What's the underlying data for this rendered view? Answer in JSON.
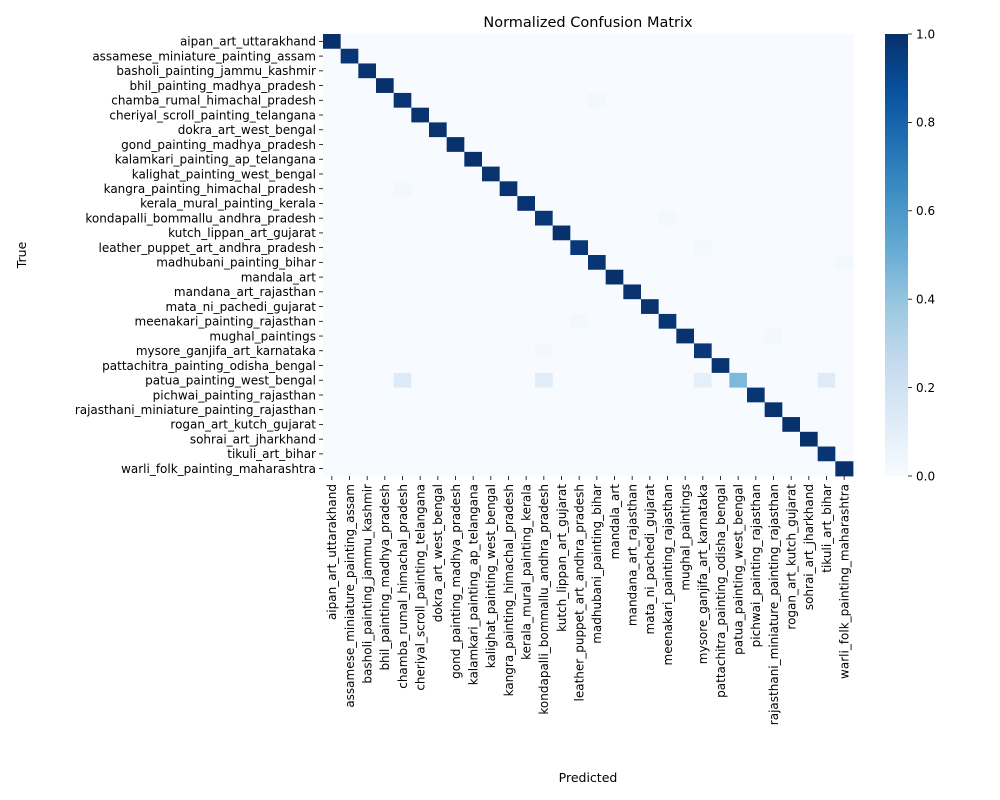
{
  "chart_data": {
    "type": "heatmap",
    "title": "Normalized Confusion Matrix",
    "xlabel": "Predicted",
    "ylabel": "True",
    "categories": [
      "aipan_art_uttarakhand",
      "assamese_miniature_painting_assam",
      "basholi_painting_jammu_kashmir",
      "bhil_painting_madhya_pradesh",
      "chamba_rumal_himachal_pradesh",
      "cheriyal_scroll_painting_telangana",
      "dokra_art_west_bengal",
      "gond_painting_madhya_pradesh",
      "kalamkari_painting_ap_telangana",
      "kalighat_painting_west_bengal",
      "kangra_painting_himachal_pradesh",
      "kerala_mural_painting_kerala",
      "kondapalli_bommallu_andhra_pradesh",
      "kutch_lippan_art_gujarat",
      "leather_puppet_art_andhra_pradesh",
      "madhubani_painting_bihar",
      "mandala_art",
      "mandana_art_rajasthan",
      "mata_ni_pachedi_gujarat",
      "meenakari_painting_rajasthan",
      "mughal_paintings",
      "mysore_ganjifa_art_karnataka",
      "pattachitra_painting_odisha_bengal",
      "patua_painting_west_bengal",
      "pichwai_painting_rajasthan",
      "rajasthani_miniature_painting_rajasthan",
      "rogan_art_kutch_gujarat",
      "sohrai_art_jharkhand",
      "tikuli_art_bihar",
      "warli_folk_painting_maharashtra"
    ],
    "diagonal": [
      1.0,
      0.98,
      0.99,
      1.0,
      0.98,
      0.99,
      0.99,
      1.0,
      1.0,
      0.99,
      0.99,
      0.99,
      0.97,
      1.0,
      0.97,
      0.98,
      1.0,
      0.99,
      0.99,
      0.98,
      0.99,
      0.97,
      0.99,
      0.45,
      0.98,
      0.99,
      1.0,
      1.0,
      0.98,
      1.0
    ],
    "off_diagonal": [
      {
        "row": 23,
        "col": 4,
        "value": 0.13
      },
      {
        "row": 23,
        "col": 12,
        "value": 0.11
      },
      {
        "row": 23,
        "col": 21,
        "value": 0.09
      },
      {
        "row": 23,
        "col": 28,
        "value": 0.12
      },
      {
        "row": 4,
        "col": 15,
        "value": 0.02
      },
      {
        "row": 14,
        "col": 21,
        "value": 0.02
      },
      {
        "row": 12,
        "col": 19,
        "value": 0.02
      },
      {
        "row": 10,
        "col": 4,
        "value": 0.02
      },
      {
        "row": 19,
        "col": 14,
        "value": 0.02
      },
      {
        "row": 15,
        "col": 29,
        "value": 0.02
      },
      {
        "row": 21,
        "col": 12,
        "value": 0.02
      },
      {
        "row": 20,
        "col": 25,
        "value": 0.02
      }
    ],
    "colorbar": {
      "range": [
        0.0,
        1.0
      ],
      "ticks": [
        "0.0",
        "0.2",
        "0.4",
        "0.6",
        "0.8",
        "1.0"
      ],
      "colormap": "Blues"
    },
    "grid": false,
    "legend": "colorbar-right"
  }
}
